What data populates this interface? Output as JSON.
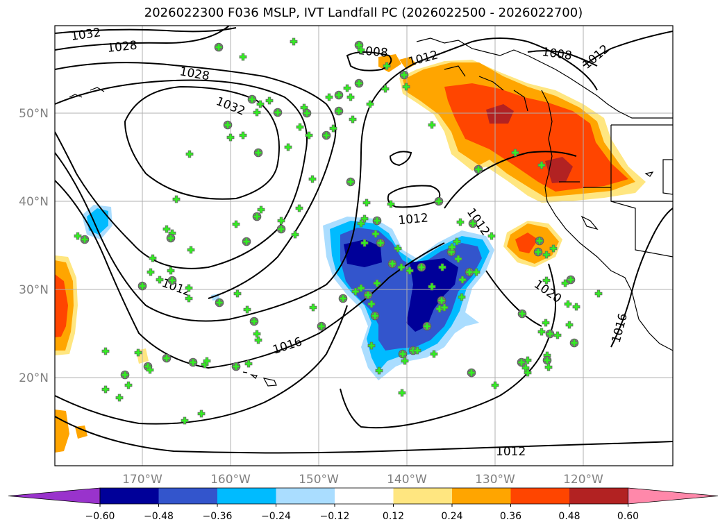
{
  "title": "2026022300 F036 MSLP, IVT Landfall PC (2026022500 - 2026022700)",
  "lat_labels": [
    "50°N",
    "40°N",
    "30°N",
    "20°N"
  ],
  "lon_labels": [
    "170°W",
    "160°W",
    "150°W",
    "140°W",
    "130°W",
    "120°W"
  ],
  "colorbar": {
    "colors": [
      "#9933cc",
      "#000099",
      "#3355cc",
      "#00bbff",
      "#aaddff",
      "#ffffff",
      "#ffe680",
      "#ffa500",
      "#ff4500",
      "#b22222",
      "#ff88aa"
    ],
    "tick_labels": [
      "−0.60",
      "−0.48",
      "−0.36",
      "−0.24",
      "−0.12",
      "0.12",
      "0.24",
      "0.36",
      "0.48",
      "0.60"
    ]
  },
  "isobar_labels": [
    "1032",
    "1028",
    "1028",
    "1032",
    "1008",
    "1012",
    "1008",
    "1012",
    "1012",
    "1012",
    "1020",
    "1016",
    "1016",
    "1012",
    "1012"
  ]
}
